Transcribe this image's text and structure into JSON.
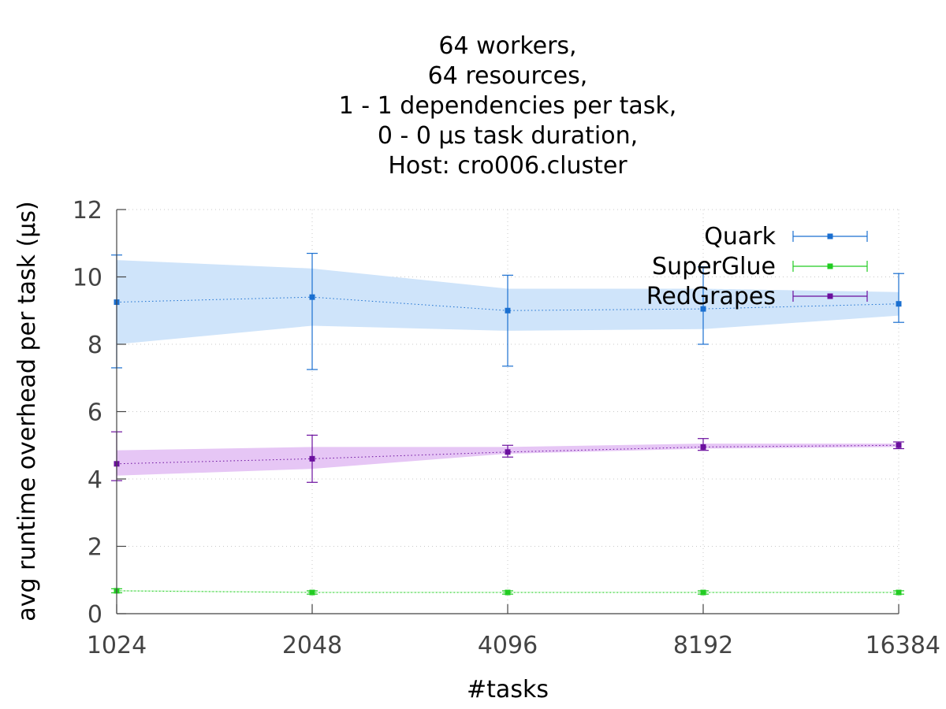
{
  "chart_data": {
    "type": "line",
    "title": [
      "64 workers,",
      "64 resources,",
      "1 - 1 dependencies per task,",
      "0 - 0 µs task duration,",
      "Host: cro006.cluster"
    ],
    "xlabel": "#tasks",
    "ylabel": "avg runtime overhead per task (µs)",
    "categories": [
      "1024",
      "2048",
      "4096",
      "8192",
      "16384"
    ],
    "ylim": [
      0,
      12
    ],
    "yticks": [
      "0",
      "2",
      "4",
      "6",
      "8",
      "10",
      "12"
    ],
    "grid": true,
    "legend_position": "top-right",
    "series": [
      {
        "name": "Quark",
        "color": "#1a6fd0",
        "band_color": "#cfe4fa",
        "values": [
          9.25,
          9.4,
          9.0,
          9.05,
          9.2
        ],
        "err_low": [
          7.3,
          7.25,
          7.35,
          8.0,
          8.65
        ],
        "err_high": [
          10.65,
          10.7,
          10.05,
          10.3,
          10.1
        ],
        "band_low": [
          8.0,
          8.55,
          8.4,
          8.45,
          8.85
        ],
        "band_high": [
          10.5,
          10.25,
          9.65,
          9.65,
          9.55
        ]
      },
      {
        "name": "SuperGlue",
        "color": "#22cc22",
        "band_color": "#c8f5c8",
        "values": [
          0.68,
          0.63,
          0.63,
          0.63,
          0.63
        ],
        "err_low": [
          0.62,
          0.58,
          0.58,
          0.58,
          0.58
        ],
        "err_high": [
          0.74,
          0.68,
          0.68,
          0.68,
          0.68
        ],
        "band_low": [
          0.66,
          0.62,
          0.62,
          0.62,
          0.62
        ],
        "band_high": [
          0.7,
          0.65,
          0.65,
          0.65,
          0.65
        ]
      },
      {
        "name": "RedGrapes",
        "color": "#6b0f9e",
        "band_color": "#e6c6f5",
        "values": [
          4.45,
          4.6,
          4.8,
          4.95,
          5.0
        ],
        "err_low": [
          3.95,
          3.9,
          4.65,
          4.85,
          4.9
        ],
        "err_high": [
          5.4,
          5.3,
          5.0,
          5.2,
          5.1
        ],
        "band_low": [
          4.1,
          4.3,
          4.75,
          4.9,
          4.95
        ],
        "band_high": [
          4.85,
          4.95,
          4.95,
          5.05,
          5.05
        ]
      }
    ]
  }
}
